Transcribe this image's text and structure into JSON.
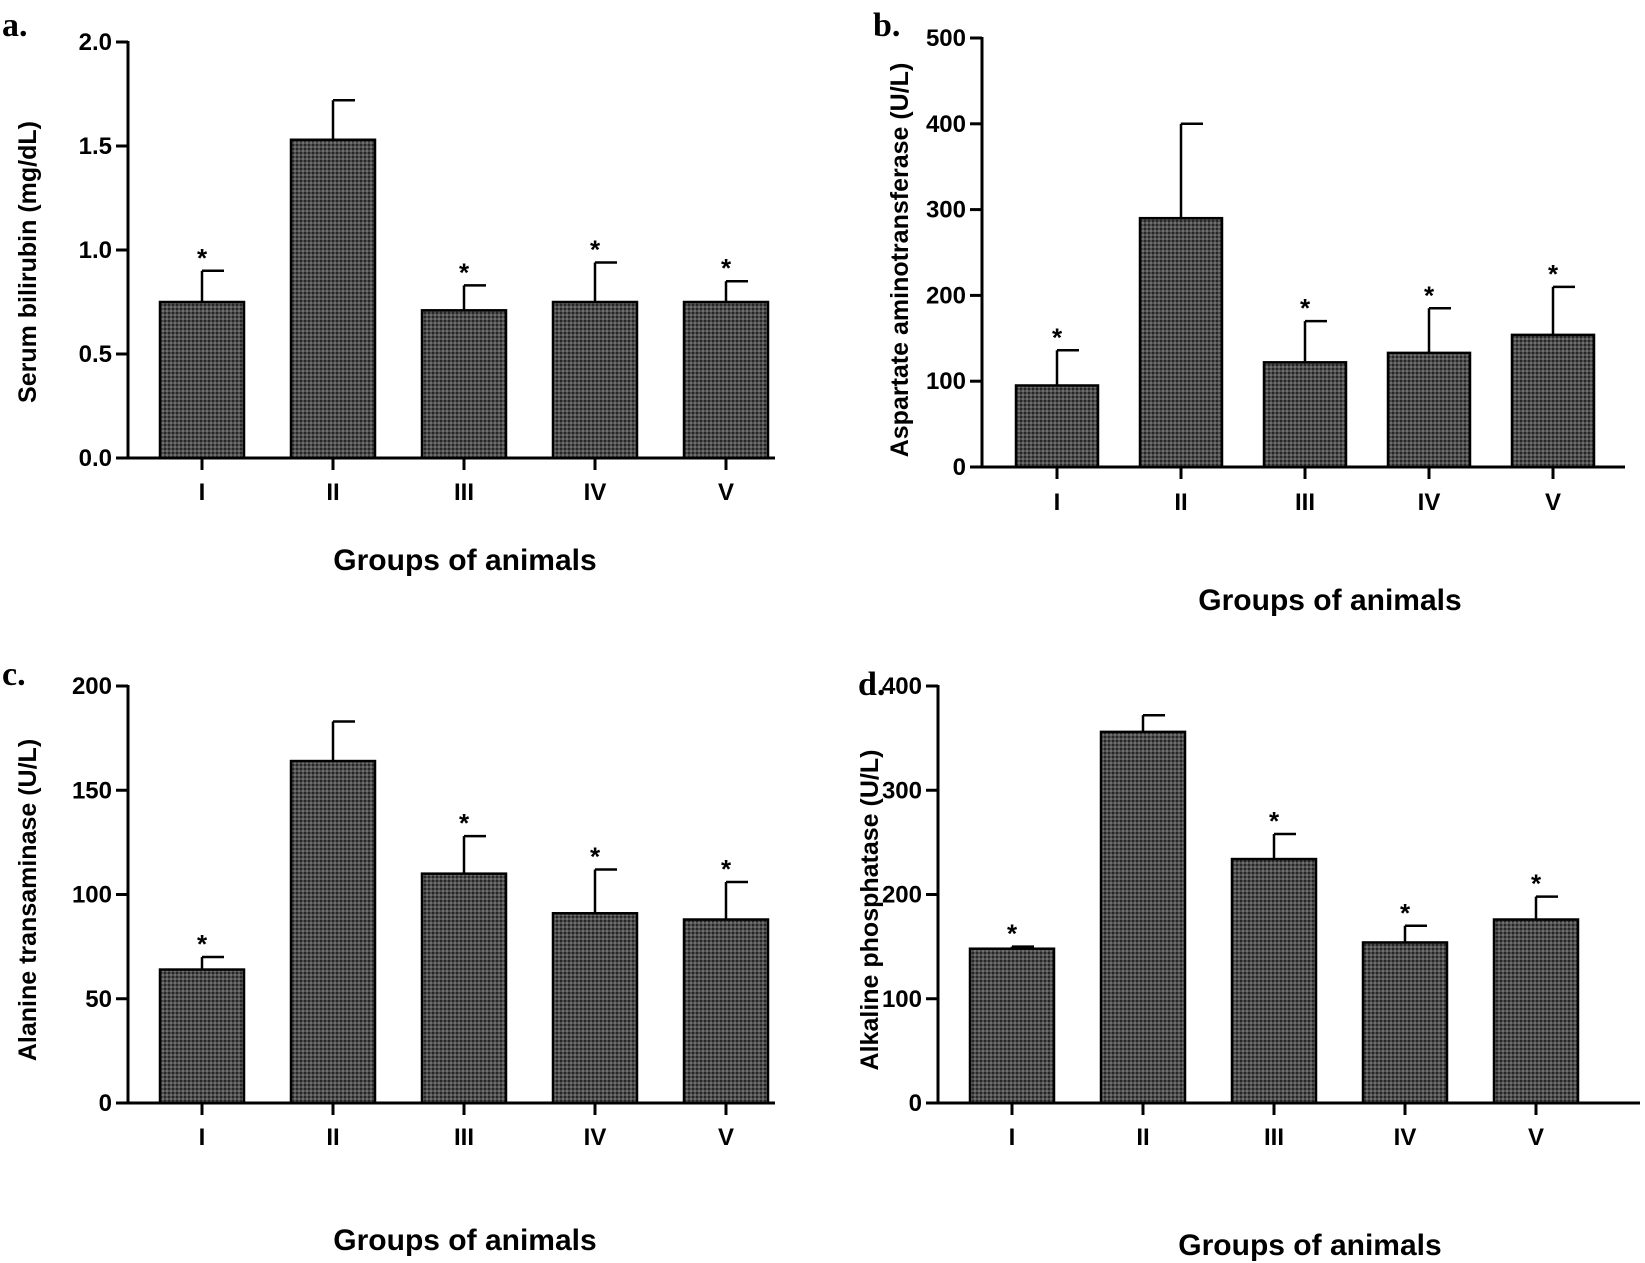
{
  "chart_data": [
    {
      "panel": "a.",
      "type": "bar",
      "title": "",
      "xlabel": "Groups of animals",
      "ylabel": "Serum bilirubin (mg/dL)",
      "categories": [
        "I",
        "II",
        "III",
        "IV",
        "V"
      ],
      "values": [
        0.75,
        1.53,
        0.71,
        0.75,
        0.75
      ],
      "errors": [
        0.15,
        0.19,
        0.12,
        0.19,
        0.1
      ],
      "significant": [
        true,
        false,
        true,
        true,
        true
      ],
      "marker": "*",
      "ylim": [
        0,
        2.0
      ],
      "yticks": [
        "0.0",
        "0.5",
        "1.0",
        "1.5",
        "2.0"
      ],
      "ytick_values": [
        0,
        0.5,
        1.0,
        1.5,
        2.0
      ]
    },
    {
      "panel": "b.",
      "type": "bar",
      "title": "",
      "xlabel": "Groups of animals",
      "ylabel": "Aspartate aminotransferase (U/L)",
      "categories": [
        "I",
        "II",
        "III",
        "IV",
        "V"
      ],
      "values": [
        95,
        290,
        122,
        133,
        154
      ],
      "errors": [
        41,
        110,
        48,
        52,
        56
      ],
      "significant": [
        true,
        false,
        true,
        true,
        true
      ],
      "marker": "*",
      "ylim": [
        0,
        500
      ],
      "yticks": [
        "0",
        "100",
        "200",
        "300",
        "400",
        "500"
      ],
      "ytick_values": [
        0,
        100,
        200,
        300,
        400,
        500
      ]
    },
    {
      "panel": "c.",
      "type": "bar",
      "title": "",
      "xlabel": "Groups of animals",
      "ylabel": "Alanine transaminase (U/L)",
      "categories": [
        "I",
        "II",
        "III",
        "IV",
        "V"
      ],
      "values": [
        64,
        164,
        110,
        91,
        88
      ],
      "errors": [
        6,
        19,
        18,
        21,
        18
      ],
      "significant": [
        true,
        false,
        true,
        true,
        true
      ],
      "marker": "*",
      "ylim": [
        0,
        200
      ],
      "yticks": [
        "0",
        "50",
        "100",
        "150",
        "200"
      ],
      "ytick_values": [
        0,
        50,
        100,
        150,
        200
      ]
    },
    {
      "panel": "d.",
      "type": "bar",
      "title": "",
      "xlabel": "Groups of animals",
      "ylabel": "Alkaline phosphatase (U/L)",
      "categories": [
        "I",
        "II",
        "III",
        "IV",
        "V"
      ],
      "values": [
        148,
        356,
        234,
        154,
        176
      ],
      "errors": [
        2,
        16,
        24,
        16,
        22
      ],
      "significant": [
        true,
        false,
        true,
        true,
        true
      ],
      "marker": "*",
      "ylim": [
        0,
        400
      ],
      "yticks": [
        "0",
        "100",
        "200",
        "300",
        "400"
      ],
      "ytick_values": [
        0,
        100,
        200,
        300,
        400
      ]
    }
  ]
}
